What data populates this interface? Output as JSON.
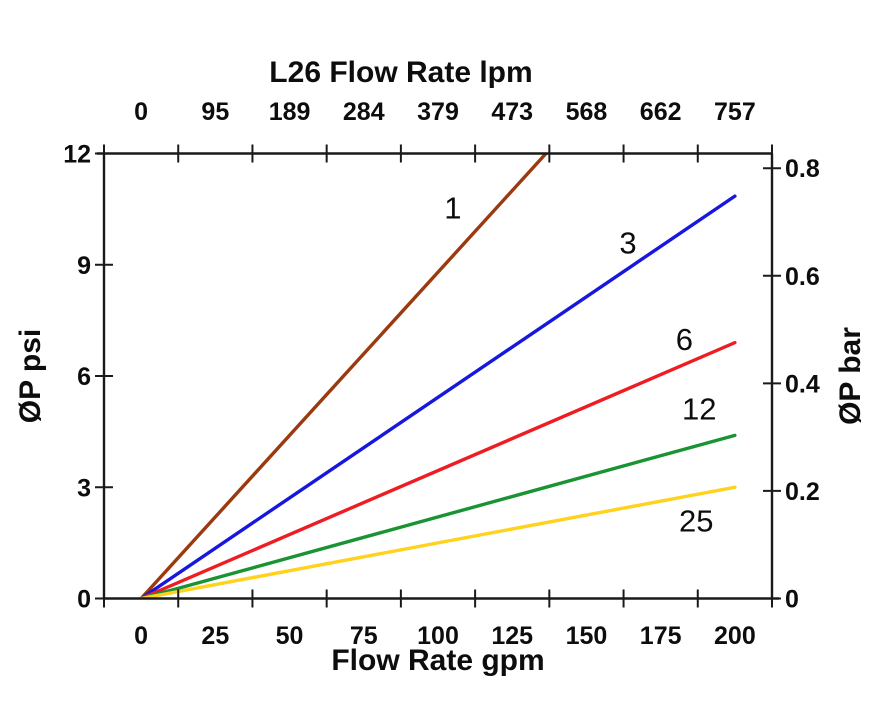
{
  "page": {
    "background": "#ffffff"
  },
  "chart_data": {
    "type": "line",
    "title": "L26 Flow Rate lpm",
    "grid": false,
    "legend_position": "inline-labels-on-lines",
    "frame_color": "#1a1a1a",
    "text_color": "#0d0d0d",
    "axes": {
      "top": {
        "label": "L26 Flow Rate lpm",
        "ticks": [
          "0",
          "95",
          "189",
          "284",
          "379",
          "473",
          "568",
          "662",
          "757"
        ]
      },
      "bottom": {
        "label": "Flow Rate gpm",
        "ticks": [
          "0",
          "25",
          "50",
          "75",
          "100",
          "125",
          "150",
          "175",
          "200"
        ],
        "tick_values": [
          0,
          25,
          50,
          75,
          100,
          125,
          150,
          175,
          200
        ]
      },
      "left": {
        "label": "ØP psi",
        "ticks": [
          "0",
          "3",
          "6",
          "9",
          "12"
        ],
        "tick_values": [
          0,
          3,
          6,
          9,
          12
        ],
        "range": [
          0,
          12
        ]
      },
      "right": {
        "label": "ØP bar",
        "ticks": [
          "0",
          "0.2",
          "0.4",
          "0.6",
          "0.8"
        ],
        "tick_values": [
          0,
          0.2,
          0.4,
          0.6,
          0.8
        ],
        "psi_per_bar": 14.5038
      }
    },
    "x_unit": "gpm",
    "y_unit": "psi",
    "series": [
      {
        "label": "1",
        "color": "#9B3A0E",
        "points": [
          [
            0,
            0
          ],
          [
            200,
            17.6
          ]
        ],
        "clipped_at_top": true,
        "label_at": [
          105,
          10.55
        ]
      },
      {
        "label": "3",
        "color": "#1717DD",
        "points": [
          [
            0,
            0
          ],
          [
            200,
            10.85
          ]
        ],
        "clipped_at_top": false,
        "label_at": [
          164,
          9.6
        ]
      },
      {
        "label": "6",
        "color": "#EE1C23",
        "points": [
          [
            0,
            0
          ],
          [
            200,
            6.9
          ]
        ],
        "clipped_at_top": false,
        "label_at": [
          183,
          7.0
        ]
      },
      {
        "label": "12",
        "color": "#1A9333",
        "points": [
          [
            0,
            0
          ],
          [
            200,
            4.4
          ]
        ],
        "clipped_at_top": false,
        "label_at": [
          188,
          5.12
        ]
      },
      {
        "label": "25",
        "color": "#FFD21E",
        "points": [
          [
            0,
            0
          ],
          [
            200,
            3.0
          ]
        ],
        "clipped_at_top": false,
        "label_at": [
          187,
          2.1
        ]
      }
    ]
  }
}
